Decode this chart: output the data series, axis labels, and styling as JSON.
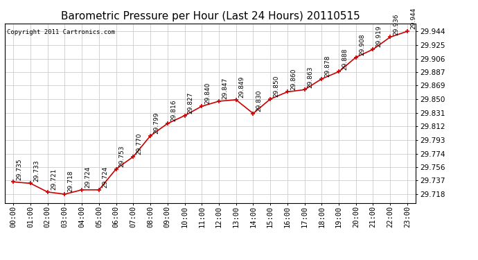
{
  "title": "Barometric Pressure per Hour (Last 24 Hours) 20110515",
  "copyright": "Copyright 2011 Cartronics.com",
  "hours": [
    "00:00",
    "01:00",
    "02:00",
    "03:00",
    "04:00",
    "05:00",
    "06:00",
    "07:00",
    "08:00",
    "09:00",
    "10:00",
    "11:00",
    "12:00",
    "13:00",
    "14:00",
    "15:00",
    "16:00",
    "17:00",
    "18:00",
    "19:00",
    "20:00",
    "21:00",
    "22:00",
    "23:00"
  ],
  "values": [
    29.735,
    29.733,
    29.721,
    29.718,
    29.724,
    29.724,
    29.753,
    29.77,
    29.799,
    29.816,
    29.827,
    29.84,
    29.847,
    29.849,
    29.83,
    29.85,
    29.86,
    29.863,
    29.878,
    29.888,
    29.908,
    29.919,
    29.936,
    29.944
  ],
  "yticks": [
    29.718,
    29.737,
    29.756,
    29.774,
    29.793,
    29.812,
    29.831,
    29.85,
    29.869,
    29.887,
    29.906,
    29.925,
    29.944
  ],
  "ylim_min": 29.706,
  "ylim_max": 29.955,
  "line_color": "#cc0000",
  "marker_color": "#cc0000",
  "bg_color": "#ffffff",
  "grid_color": "#cccccc",
  "title_fontsize": 11,
  "tick_fontsize": 7.5,
  "annotation_fontsize": 6.5
}
